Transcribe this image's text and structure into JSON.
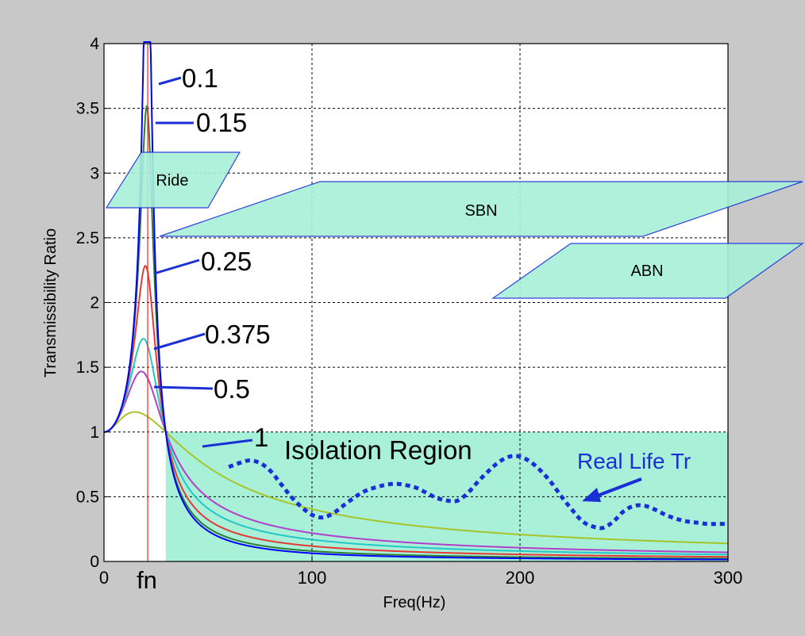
{
  "chart_data": {
    "type": "line",
    "xlabel": "Freq(Hz)",
    "ylabel": "Transmissibility Ratio",
    "xlim": [
      0,
      300
    ],
    "ylim": [
      0,
      4
    ],
    "xticks": [
      "0",
      "100",
      "200",
      "300"
    ],
    "xtick_values": [
      0,
      100,
      200,
      300
    ],
    "yticks": [
      "0",
      "0.5",
      "1",
      "1.5",
      "2",
      "2.5",
      "3",
      "3.5",
      "4"
    ],
    "ytick_values": [
      0,
      0.5,
      1,
      1.5,
      2,
      2.5,
      3,
      3.5,
      4
    ],
    "grid": true,
    "natural_frequency_hz": 21,
    "fn_label": "fn",
    "series": [
      {
        "name": "0.1",
        "damping": 0.1,
        "color": "#0000ff"
      },
      {
        "name": "0.15",
        "damping": 0.15,
        "color": "#2e7d32"
      },
      {
        "name": "0.25",
        "damping": 0.25,
        "color": "#e53935"
      },
      {
        "name": "0.375",
        "damping": 0.375,
        "color": "#26c6c6"
      },
      {
        "name": "0.5",
        "damping": 0.5,
        "color": "#b23fc9"
      },
      {
        "name": "1",
        "damping": 1.0,
        "color": "#a7c42a"
      }
    ],
    "real_life": {
      "name": "Real Life Tr",
      "color": "#1a2fd6",
      "x": [
        60,
        65,
        70,
        75,
        80,
        85,
        90,
        95,
        100,
        105,
        110,
        115,
        120,
        125,
        130,
        135,
        140,
        145,
        150,
        155,
        160,
        165,
        170,
        175,
        180,
        185,
        190,
        195,
        200,
        205,
        210,
        215,
        220,
        225,
        230,
        235,
        240,
        245,
        250,
        255,
        260,
        265,
        270,
        275,
        280,
        285,
        290,
        295,
        300
      ],
      "y": [
        0.73,
        0.76,
        0.78,
        0.76,
        0.7,
        0.6,
        0.5,
        0.42,
        0.36,
        0.34,
        0.37,
        0.43,
        0.49,
        0.54,
        0.57,
        0.59,
        0.6,
        0.59,
        0.57,
        0.53,
        0.49,
        0.47,
        0.47,
        0.53,
        0.62,
        0.7,
        0.77,
        0.81,
        0.81,
        0.77,
        0.7,
        0.61,
        0.5,
        0.4,
        0.31,
        0.27,
        0.26,
        0.31,
        0.39,
        0.43,
        0.43,
        0.4,
        0.36,
        0.33,
        0.31,
        0.3,
        0.29,
        0.29,
        0.29
      ]
    },
    "regions": [
      {
        "name": "Ride",
        "label": "Ride",
        "fill": "#a8f0d8"
      },
      {
        "name": "SBN",
        "label": "SBN",
        "fill": "#a8f0d8"
      },
      {
        "name": "ABN",
        "label": "ABN",
        "fill": "#a8f0d8"
      },
      {
        "name": "Isolation Region",
        "label": "Isolation Region",
        "fill": "#a8f0d8",
        "x_range": [
          29.7,
          300
        ],
        "y_range": [
          0,
          1
        ]
      }
    ]
  }
}
